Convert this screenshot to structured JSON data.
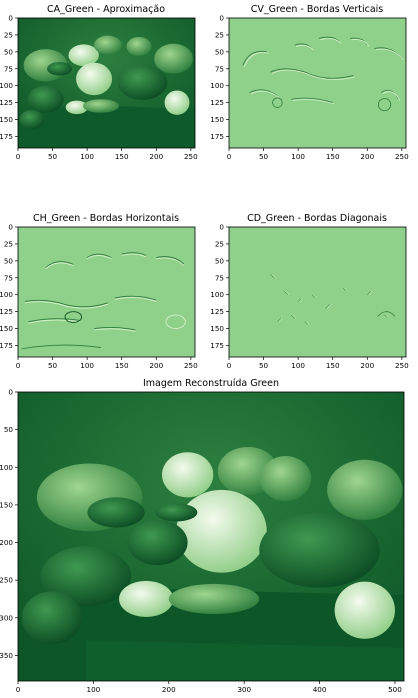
{
  "colors": {
    "ca_dark": "#0f5d2d",
    "ca_light": "#b6e3a6",
    "detail_bg": "#8fd18a",
    "detail_dark": "#2f7a3d",
    "detail_light": "#d8f2cc",
    "recon_dark": "#0b5a2a",
    "recon_light": "#e7f6dc"
  },
  "chart_data": [
    {
      "type": "heatmap",
      "title": "CA_Green - Aproximação",
      "xlim": [
        0,
        256
      ],
      "ylim": [
        192,
        0
      ],
      "xticks": [
        0,
        50,
        100,
        150,
        200,
        250
      ],
      "yticks": [
        0,
        25,
        50,
        75,
        100,
        125,
        150,
        175
      ],
      "colormap": "Greens"
    },
    {
      "type": "heatmap",
      "title": "CV_Green - Bordas Verticais",
      "xlim": [
        0,
        256
      ],
      "ylim": [
        192,
        0
      ],
      "xticks": [
        0,
        50,
        100,
        150,
        200,
        250
      ],
      "yticks": [
        0,
        25,
        50,
        75,
        100,
        125,
        150,
        175
      ],
      "colormap": "Greens"
    },
    {
      "type": "heatmap",
      "title": "CH_Green - Bordas Horizontais",
      "xlim": [
        0,
        256
      ],
      "ylim": [
        192,
        0
      ],
      "xticks": [
        0,
        50,
        100,
        150,
        200,
        250
      ],
      "yticks": [
        0,
        25,
        50,
        75,
        100,
        125,
        150,
        175
      ],
      "colormap": "Greens"
    },
    {
      "type": "heatmap",
      "title": "CD_Green - Bordas Diagonais",
      "xlim": [
        0,
        256
      ],
      "ylim": [
        192,
        0
      ],
      "xticks": [
        0,
        50,
        100,
        150,
        200,
        250
      ],
      "yticks": [
        0,
        25,
        50,
        75,
        100,
        125,
        150,
        175
      ],
      "colormap": "Greens"
    },
    {
      "type": "heatmap",
      "title": "Imagem Reconstruída Green",
      "xlim": [
        0,
        512
      ],
      "ylim": [
        384,
        0
      ],
      "xticks": [
        0,
        100,
        200,
        300,
        400,
        500
      ],
      "yticks": [
        0,
        50,
        100,
        150,
        200,
        250,
        300,
        350
      ],
      "colormap": "Greens"
    }
  ]
}
